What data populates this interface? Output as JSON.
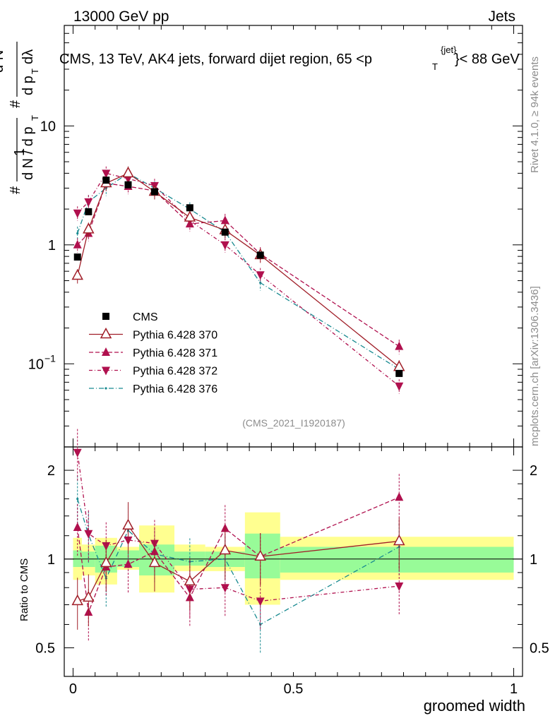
{
  "header": {
    "left": "13000 GeV pp",
    "right": "Jets",
    "title": "CMS, 13 TeV, AK4 jets, forward dijet region, 65 <p",
    "title_sup": "{jet}",
    "title_sub": "T",
    "title_end": "}< 88 GeV",
    "side_top": "Rivet 4.1.0, ≥ 94k events",
    "side_bottom": "mcplots.cern.ch [arXiv:1306.3436]",
    "analysis": "(CMS_2021_I1920187)"
  },
  "chart_data": {
    "type": "line",
    "xlabel": "groomed width",
    "ylabel_main_parts": [
      "#",
      "1",
      "d N / d p",
      "T",
      "#",
      "d²N",
      "d p",
      "T",
      "dλ"
    ],
    "ylabel_ratio": "Ratio to CMS",
    "xlim": [
      -0.02,
      1.02
    ],
    "ylim_main": [
      0.02,
      70
    ],
    "ylim_ratio": [
      0.4,
      2.4
    ],
    "x_ticks": [
      {
        "v": 0,
        "label": "0"
      },
      {
        "v": 0.5,
        "label": "0.5"
      },
      {
        "v": 1,
        "label": "1"
      }
    ],
    "y_ticks_main": [
      {
        "v": 0.1,
        "base": "10",
        "exp": "−1"
      },
      {
        "v": 1,
        "base": "1",
        "exp": ""
      },
      {
        "v": 10,
        "base": "10",
        "exp": ""
      }
    ],
    "y_ticks_ratio": [
      {
        "v": 0.5,
        "label": "0.5"
      },
      {
        "v": 1,
        "label": "1"
      },
      {
        "v": 2,
        "label": "2"
      }
    ],
    "x": [
      0.01,
      0.035,
      0.075,
      0.125,
      0.185,
      0.265,
      0.345,
      0.425,
      0.74
    ],
    "bins": [
      [
        0.0,
        0.02
      ],
      [
        0.02,
        0.05
      ],
      [
        0.05,
        0.1
      ],
      [
        0.1,
        0.15
      ],
      [
        0.15,
        0.23
      ],
      [
        0.23,
        0.3
      ],
      [
        0.3,
        0.39
      ],
      [
        0.39,
        0.47
      ],
      [
        0.47,
        1.0
      ]
    ],
    "band_inner": [
      [
        0.94,
        1.07
      ],
      [
        0.94,
        1.06
      ],
      [
        0.9,
        1.11
      ],
      [
        0.94,
        1.07
      ],
      [
        0.88,
        1.12
      ],
      [
        0.95,
        1.06
      ],
      [
        0.94,
        1.06
      ],
      [
        0.86,
        1.22
      ],
      [
        0.9,
        1.1
      ]
    ],
    "band_outer": [
      [
        0.85,
        1.18
      ],
      [
        0.88,
        1.12
      ],
      [
        0.82,
        1.18
      ],
      [
        0.92,
        1.1
      ],
      [
        0.77,
        1.3
      ],
      [
        0.91,
        1.12
      ],
      [
        0.91,
        1.1
      ],
      [
        0.7,
        1.44
      ],
      [
        0.85,
        1.19
      ]
    ],
    "legend": [
      "CMS",
      "Pythia 6.428 370",
      "Pythia 6.428 371",
      "Pythia 6.428 372",
      "Pythia 6.428 376"
    ],
    "series": [
      {
        "name": "CMS",
        "color": "#000000",
        "marker": "square",
        "dash": "",
        "values": [
          0.79,
          1.9,
          3.5,
          3.2,
          2.8,
          2.05,
          1.28,
          0.82,
          0.083
        ],
        "ratio": [
          1,
          1,
          1,
          1,
          1,
          1,
          1,
          1,
          1
        ]
      },
      {
        "name": "Pythia 6.428 370",
        "color": "#a01e28",
        "marker": "triangle-open",
        "dash": "",
        "values": [
          0.55,
          1.35,
          3.3,
          4.0,
          2.8,
          1.7,
          1.33,
          0.82,
          0.094
        ],
        "ratio": [
          0.72,
          0.74,
          0.97,
          1.3,
          0.97,
          0.84,
          1.07,
          1.02,
          1.15
        ]
      },
      {
        "name": "Pythia 6.428 371",
        "color": "#b0104e",
        "marker": "triangle-up",
        "dash": "6,3",
        "values": [
          1.0,
          1.25,
          3.3,
          3.1,
          2.85,
          1.5,
          1.6,
          0.84,
          0.14
        ],
        "ratio": [
          1.28,
          0.66,
          0.94,
          0.96,
          1.06,
          0.74,
          1.27,
          1.02,
          1.62
        ]
      },
      {
        "name": "Pythia 6.428 372",
        "color": "#b0104e",
        "marker": "triangle-down",
        "dash": "5,3,1,3",
        "values": [
          1.85,
          2.3,
          4.0,
          3.6,
          3.15,
          1.6,
          1.0,
          0.56,
          0.065
        ],
        "ratio": [
          2.3,
          1.22,
          1.11,
          1.16,
          1.13,
          0.79,
          0.8,
          0.72,
          0.81
        ]
      },
      {
        "name": "Pythia 6.428 376",
        "color": "#188a90",
        "marker": "dot",
        "dash": "7,3,1,3",
        "values": [
          1.25,
          2.3,
          3.0,
          4.0,
          3.0,
          2.0,
          1.28,
          0.48,
          0.09
        ],
        "ratio": [
          1.6,
          1.21,
          0.86,
          1.25,
          1.04,
          0.98,
          1.0,
          0.6,
          1.1
        ]
      }
    ]
  }
}
